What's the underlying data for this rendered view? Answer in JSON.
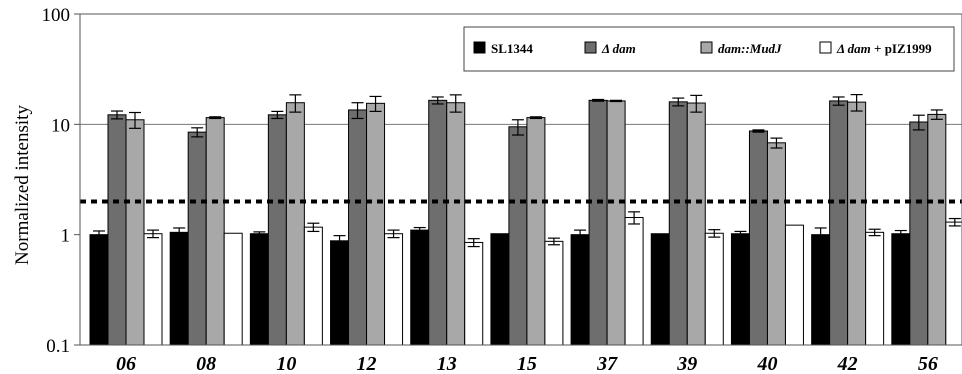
{
  "chart_data": {
    "type": "bar",
    "ylabel": "Normalized intensity",
    "yscale": "log",
    "ylim": [
      0.1,
      100
    ],
    "yticks": [
      "0.1",
      "1",
      "10",
      "100"
    ],
    "grid": "horizontal at 10 and 100",
    "threshold_line": {
      "value": 2,
      "style": "dotted"
    },
    "legend_position": "top-right",
    "categories": [
      "06",
      "08",
      "10",
      "12",
      "13",
      "15",
      "37",
      "39",
      "40",
      "42",
      "56"
    ],
    "legend": [
      {
        "prefix": "",
        "italic": "",
        "suffix": "SL1344"
      },
      {
        "prefix": "",
        "italic": "Δ dam",
        "suffix": ""
      },
      {
        "prefix": "",
        "italic": "dam::MudJ",
        "suffix": ""
      },
      {
        "prefix": "",
        "italic": "Δ dam",
        "suffix": " + pIZ1999"
      }
    ],
    "series": [
      {
        "color": "#000000",
        "values": [
          1.0,
          1.05,
          1.02,
          0.88,
          1.1,
          1.02,
          1.0,
          1.02,
          1.02,
          1.0,
          1.02
        ],
        "errors": [
          0.08,
          0.1,
          0.04,
          0.1,
          0.06,
          0.0,
          0.1,
          0.0,
          0.05,
          0.15,
          0.07
        ]
      },
      {
        "color": "#6e6e6e",
        "values": [
          12.2,
          8.5,
          12.2,
          13.5,
          16.5,
          9.5,
          16.5,
          16.0,
          8.7,
          16.3,
          10.5
        ],
        "errors": [
          1.0,
          0.8,
          0.9,
          2.2,
          1.2,
          1.5,
          0.3,
          1.3,
          0.2,
          1.4,
          1.6
        ]
      },
      {
        "color": "#a8a8a8",
        "values": [
          11.0,
          11.5,
          15.7,
          15.5,
          15.7,
          11.5,
          16.3,
          15.6,
          6.8,
          15.9,
          12.3
        ],
        "errors": [
          1.8,
          0.2,
          2.8,
          2.4,
          2.8,
          0.2,
          0.2,
          2.7,
          0.7,
          2.7,
          1.2
        ]
      },
      {
        "color": "#ffffff",
        "values": [
          1.02,
          1.03,
          1.17,
          1.02,
          0.85,
          0.87,
          1.43,
          1.03,
          1.22,
          1.05,
          1.3
        ],
        "errors": [
          0.08,
          0.0,
          0.1,
          0.08,
          0.07,
          0.06,
          0.18,
          0.08,
          0.0,
          0.07,
          0.1
        ]
      }
    ]
  }
}
